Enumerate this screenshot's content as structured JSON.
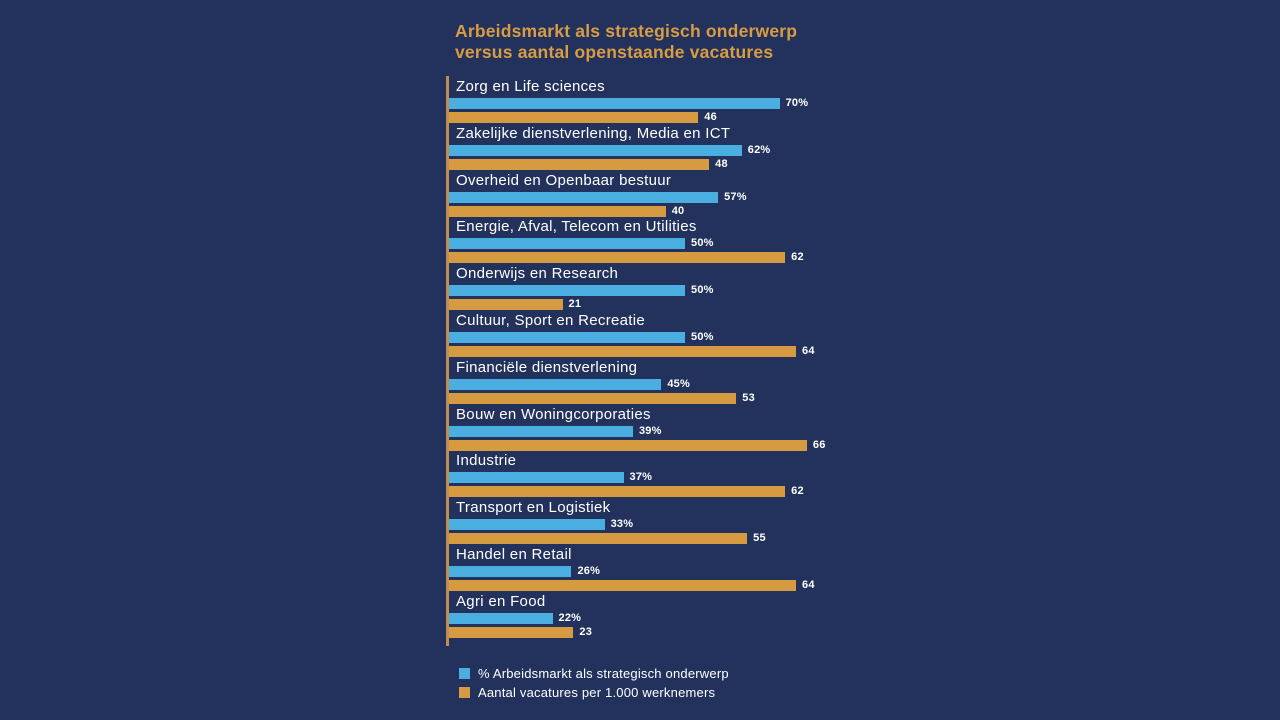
{
  "page": {
    "background_color": "#22325C",
    "text_color": "#FFFFFF"
  },
  "title": {
    "lines": [
      "Arbeidsmarkt als strategisch onderwerp",
      "versus aantal openstaande vacatures"
    ],
    "color": "#D99C42"
  },
  "chart_data": {
    "type": "bar",
    "orientation": "horizontal",
    "grouped": true,
    "title": "Arbeidsmarkt als strategisch onderwerp versus aantal openstaande vacatures",
    "categories": [
      "Zorg en Life sciences",
      "Zakelijke dienstverlening, Media en ICT",
      "Overheid en Openbaar bestuur",
      "Energie, Afval, Telecom en Utilities",
      "Onderwijs en Research",
      "Cultuur, Sport en Recreatie",
      "Financiële dienstverlening",
      "Bouw en Woningcorporaties",
      "Industrie",
      "Transport en Logistiek",
      "Handel en Retail",
      "Agri en Food"
    ],
    "series": [
      {
        "name": "% Arbeidsmarkt als strategisch onderwerp",
        "unit": "%",
        "color": "#4AAEE0",
        "values": [
          70,
          62,
          57,
          50,
          50,
          50,
          45,
          39,
          37,
          33,
          26,
          22
        ]
      },
      {
        "name": "Aantal vacatures per 1.000 werknemers",
        "unit": "",
        "color": "#D69B41",
        "values": [
          46,
          48,
          40,
          62,
          21,
          64,
          53,
          66,
          62,
          55,
          64,
          23
        ]
      }
    ],
    "value_labels": true,
    "grid": false,
    "axis_line_color": "#BE8F55",
    "legend_position": "bottom-left",
    "xlim_series0": [
      0,
      70
    ],
    "xlim_series1": [
      0,
      66
    ]
  }
}
